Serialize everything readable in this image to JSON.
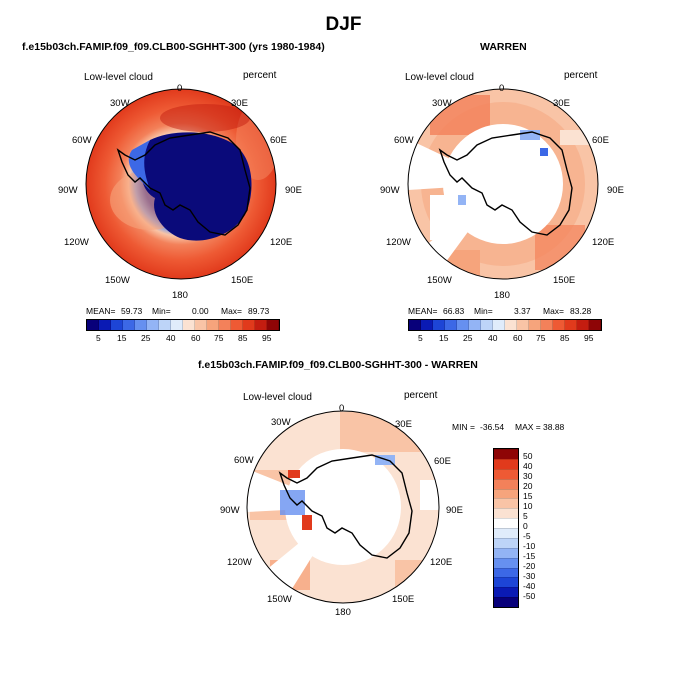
{
  "figure_title": "DJF",
  "colors": {
    "seq": [
      "#08007a",
      "#0a1ab4",
      "#1d45d6",
      "#3c68e6",
      "#6690f0",
      "#93b4f5",
      "#bdd4f8",
      "#e0ecfb",
      "#fbe2d2",
      "#f9c4a6",
      "#f6a47c",
      "#f3815a",
      "#ee5a34",
      "#e13a1c",
      "#c41d10",
      "#8e0506"
    ],
    "diff": [
      "#08007a",
      "#0a1ab4",
      "#1d45d6",
      "#3c68e6",
      "#6690f0",
      "#93b4f5",
      "#bdd4f8",
      "#e0ecfb",
      "#ffffff",
      "#fbe2d2",
      "#f9c4a6",
      "#f6a47c",
      "#f3815a",
      "#ee5a34",
      "#e13a1c",
      "#8e0506"
    ]
  },
  "panels": [
    {
      "title": "f.e15b03ch.FAMIP.f09_f09.CLB00-SGHHT-300 (yrs 1980-1984)",
      "left_label": "Low-level cloud",
      "right_label": "percent",
      "lon_labels": [
        "0",
        "30E",
        "60E",
        "90E",
        "120E",
        "150E",
        "180",
        "150W",
        "120W",
        "90W",
        "60W",
        "30W"
      ],
      "stats": {
        "mean_label": "MEAN=",
        "mean": "59.73",
        "min_label": "Min=",
        "min": "0.00",
        "max_label": "Max=",
        "max": "89.73"
      },
      "colorbar_labels": [
        "5",
        "15",
        "25",
        "40",
        "60",
        "75",
        "85",
        "95"
      ]
    },
    {
      "title": "WARREN",
      "left_label": "Low-level cloud",
      "right_label": "percent",
      "lon_labels": [
        "0",
        "30E",
        "60E",
        "90E",
        "120E",
        "150E",
        "180",
        "150W",
        "120W",
        "90W",
        "60W",
        "30W"
      ],
      "stats": {
        "mean_label": "MEAN=",
        "mean": "66.83",
        "min_label": "Min=",
        "min": "3.37",
        "max_label": "Max=",
        "max": "83.28"
      },
      "colorbar_labels": [
        "5",
        "15",
        "25",
        "40",
        "60",
        "75",
        "85",
        "95"
      ]
    },
    {
      "title": "f.e15b03ch.FAMIP.f09_f09.CLB00-SGHHT-300 - WARREN",
      "left_label": "Low-level cloud",
      "right_label": "percent",
      "lon_labels": [
        "0",
        "30E",
        "60E",
        "90E",
        "120E",
        "150E",
        "180",
        "150W",
        "120W",
        "90W",
        "60W",
        "30W"
      ],
      "stats": {
        "min_label": "MIN =",
        "min": "-36.54",
        "max_label": "MAX =",
        "max": "38.88"
      },
      "colorbar_labels": [
        "50",
        "40",
        "30",
        "20",
        "15",
        "10",
        "5",
        "0",
        "-5",
        "-10",
        "-15",
        "-20",
        "-30",
        "-40",
        "-50"
      ]
    }
  ]
}
